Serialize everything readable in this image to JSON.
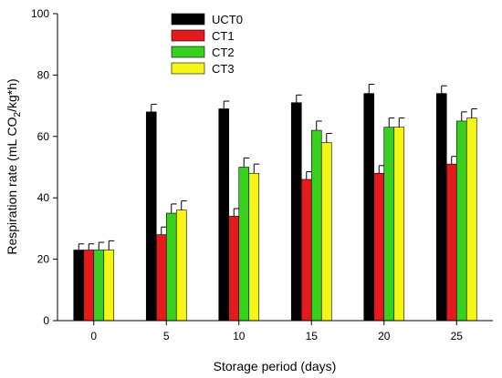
{
  "chart_data": {
    "type": "bar",
    "title": "",
    "xlabel": "Storage period (days)",
    "ylabel_main": "Respiration rate (mL CO",
    "ylabel_sub": "2",
    "ylabel_tail": "/kg*h)",
    "ylim": [
      0,
      100
    ],
    "yticks": [
      "0",
      "20",
      "40",
      "60",
      "80",
      "100"
    ],
    "categories": [
      "0",
      "5",
      "10",
      "15",
      "20",
      "25"
    ],
    "series": [
      {
        "name": "UCT0",
        "color": "#000000",
        "values": [
          23,
          68,
          69,
          71,
          74,
          74
        ],
        "errors": [
          2,
          2.5,
          2.5,
          2.5,
          3,
          2.5
        ]
      },
      {
        "name": "CT1",
        "color": "#e41a1c",
        "values": [
          23,
          28,
          34,
          46,
          48,
          51
        ],
        "errors": [
          2,
          2.5,
          2.5,
          2.5,
          2.5,
          2.5
        ]
      },
      {
        "name": "CT2",
        "color": "#39d11f",
        "values": [
          23,
          35,
          50,
          62,
          63,
          65
        ],
        "errors": [
          2.5,
          3,
          3,
          3,
          3,
          3
        ]
      },
      {
        "name": "CT3",
        "color": "#f5f516",
        "values": [
          23,
          36,
          48,
          58,
          63,
          66
        ],
        "errors": [
          3,
          3,
          3,
          3,
          3,
          3
        ]
      }
    ],
    "legend_position": "top-left",
    "grid": false
  }
}
